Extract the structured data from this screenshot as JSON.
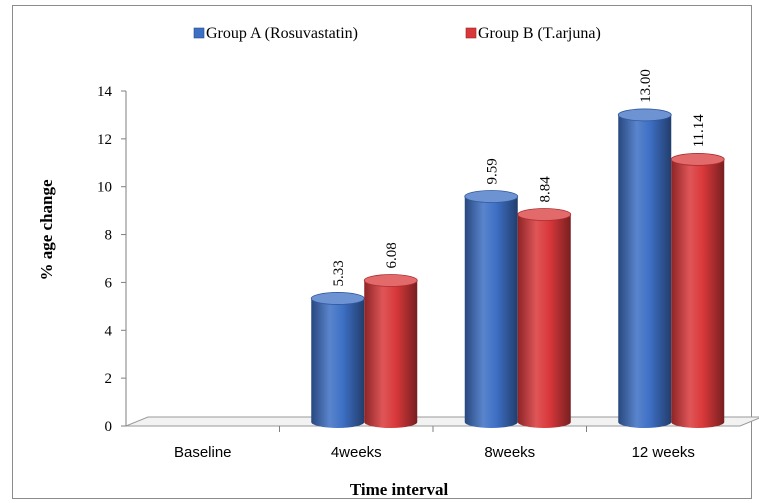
{
  "chart_data": {
    "type": "bar",
    "title": "",
    "xlabel": "Time interval",
    "ylabel": "% age change",
    "categories": [
      "Baseline",
      "4weeks",
      "8weeks",
      "12 weeks"
    ],
    "series": [
      {
        "name": "Group A (Rosuvastatin)",
        "values": [
          null,
          5.33,
          9.59,
          13.0
        ],
        "labels": [
          "",
          "5.33",
          "9.59",
          "13.00"
        ],
        "color": "#3d6fc4"
      },
      {
        "name": "Group B (T.arjuna)",
        "values": [
          null,
          6.08,
          8.84,
          11.14
        ],
        "labels": [
          "",
          "6.08",
          "8.84",
          "11.14"
        ],
        "color": "#d9383a"
      }
    ],
    "ylim": [
      0,
      14
    ],
    "yticks": [
      "0",
      "2",
      "4",
      "6",
      "8",
      "10",
      "12",
      "14"
    ],
    "grid": false,
    "legend_position": "top",
    "style": "3d-cylinder"
  }
}
